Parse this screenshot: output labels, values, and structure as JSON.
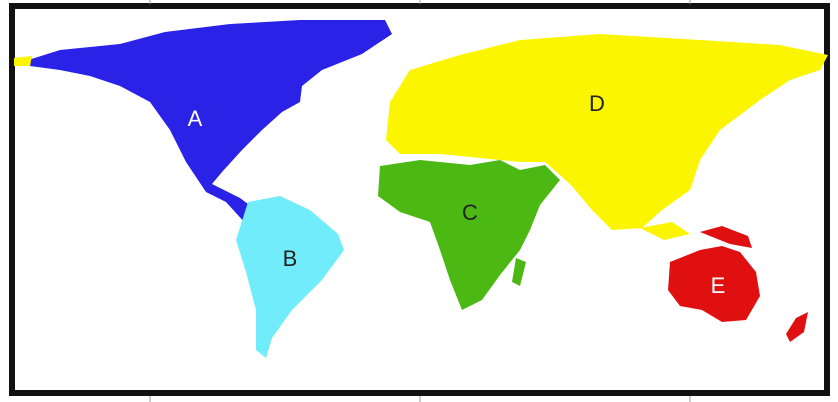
{
  "map": {
    "regions": [
      {
        "id": "A",
        "label": "A",
        "color": "#2b22e8",
        "label_color": "#ffffff"
      },
      {
        "id": "B",
        "label": "B",
        "color": "#70ecfb",
        "label_color": "#222222"
      },
      {
        "id": "C",
        "label": "C",
        "color": "#4cb814",
        "label_color": "#222222"
      },
      {
        "id": "D",
        "label": "D",
        "color": "#fbf500",
        "label_color": "#222222"
      },
      {
        "id": "E",
        "label": "E",
        "color": "#e01010",
        "label_color": "#ffffff"
      }
    ],
    "frame_color": "#111111",
    "background": "#ffffff"
  }
}
